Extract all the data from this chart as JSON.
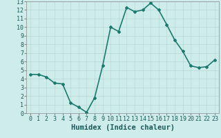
{
  "x": [
    0,
    1,
    2,
    3,
    4,
    5,
    6,
    7,
    8,
    9,
    10,
    11,
    12,
    13,
    14,
    15,
    16,
    17,
    18,
    19,
    20,
    21,
    22,
    23
  ],
  "y": [
    4.5,
    4.5,
    4.2,
    3.5,
    3.4,
    1.2,
    0.7,
    0.1,
    1.8,
    5.5,
    10.0,
    9.5,
    12.3,
    11.8,
    12.0,
    12.8,
    12.0,
    10.3,
    8.5,
    7.2,
    5.5,
    5.3,
    5.4,
    6.2
  ],
  "line_color": "#1a7a6e",
  "marker": "D",
  "marker_size": 2.0,
  "bg_color": "#ceecea",
  "grid_color": "#b8d8d5",
  "xlabel": "Humidex (Indice chaleur)",
  "xlim": [
    -0.5,
    23.5
  ],
  "ylim": [
    0,
    13
  ],
  "xticks": [
    0,
    1,
    2,
    3,
    4,
    5,
    6,
    7,
    8,
    9,
    10,
    11,
    12,
    13,
    14,
    15,
    16,
    17,
    18,
    19,
    20,
    21,
    22,
    23
  ],
  "yticks": [
    0,
    1,
    2,
    3,
    4,
    5,
    6,
    7,
    8,
    9,
    10,
    11,
    12,
    13
  ],
  "xlabel_fontsize": 7.5,
  "tick_fontsize": 6.0,
  "linewidth": 1.2
}
